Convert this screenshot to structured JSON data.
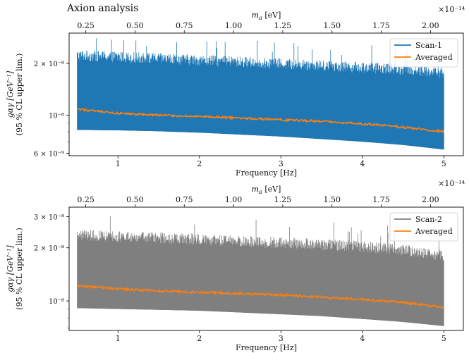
{
  "page_title": "Axion analysis",
  "chart_data": [
    {
      "type": "line",
      "name": "top-panel",
      "xlabel": "Frequency [Hz]",
      "x2label": "m_a [eV]",
      "x2label_var": "m",
      "x2label_sub": "a",
      "x2label_unit": " [eV]",
      "x2_multiplier": "×10⁻¹⁴",
      "ylabel_line1": "gαγ [GeV⁻¹]",
      "ylabel_line2": "(95 % CL upper lim.)",
      "xlim": [
        0.4,
        5.24
      ],
      "ylim_log": [
        5.8e-09,
        3e-08
      ],
      "x_ticks": [
        1,
        2,
        3,
        4,
        5
      ],
      "x_tick_labels": [
        "1",
        "2",
        "3",
        "4",
        "5"
      ],
      "x2_ticks_hz": [
        0.6045,
        1.209,
        1.8135,
        2.418,
        3.0225,
        3.627,
        4.2315,
        4.836
      ],
      "x2_tick_labels": [
        "0.25",
        "0.50",
        "0.75",
        "1.00",
        "1.25",
        "1.50",
        "1.75",
        "2.00"
      ],
      "y_ticks": [
        6e-09,
        1e-08,
        2e-08
      ],
      "y_tick_labels": [
        "6 × 10⁻⁹",
        "10⁻⁸",
        "2 × 10⁻⁸"
      ],
      "legend_position": "top-right",
      "series": [
        {
          "name": "Scan-1",
          "color": "#1f77b4",
          "kind": "band",
          "x": [
            0.5,
            1.0,
            1.5,
            2.0,
            2.5,
            3.0,
            3.5,
            4.0,
            4.5,
            5.0
          ],
          "lower": [
            8.2e-09,
            8.15e-09,
            8.05e-09,
            7.9e-09,
            7.7e-09,
            7.5e-09,
            7.25e-09,
            7e-09,
            6.7e-09,
            6.3e-09
          ],
          "upper_typical": [
            2.35e-08,
            2.3e-08,
            2.25e-08,
            2.2e-08,
            2.15e-08,
            2.1e-08,
            2.05e-08,
            2e-08,
            1.95e-08,
            1.85e-08
          ],
          "upper_peak": 2.8e-08
        },
        {
          "name": "Averaged",
          "color": "#ff7f0e",
          "kind": "line",
          "x": [
            0.5,
            1.0,
            1.5,
            2.0,
            2.5,
            3.0,
            3.5,
            4.0,
            4.5,
            5.0
          ],
          "y": [
            1.08e-08,
            1.02e-08,
            1e-08,
            9.8e-09,
            9.6e-09,
            9.4e-09,
            9.2e-09,
            8.9e-09,
            8.5e-09,
            8e-09
          ]
        }
      ]
    },
    {
      "type": "line",
      "name": "bottom-panel",
      "xlabel": "Frequency [Hz]",
      "x2label": "m_a [eV]",
      "x2label_var": "m",
      "x2label_sub": "a",
      "x2label_unit": " [eV]",
      "x2_multiplier": "×10⁻¹⁴",
      "ylabel_line1": "gαγ [GeV⁻¹]",
      "ylabel_line2": "(95 % CL upper lim.)",
      "xlim": [
        0.4,
        5.24
      ],
      "ylim_log": [
        6.8e-09,
        3.4e-08
      ],
      "x_ticks": [
        1,
        2,
        3,
        4,
        5
      ],
      "x_tick_labels": [
        "1",
        "2",
        "3",
        "4",
        "5"
      ],
      "x2_ticks_hz": [
        0.6045,
        1.209,
        1.8135,
        2.418,
        3.0225,
        3.627,
        4.2315,
        4.836
      ],
      "x2_tick_labels": [
        "0.25",
        "0.50",
        "0.75",
        "1.00",
        "1.25",
        "1.50",
        "1.75",
        "2.00"
      ],
      "y_ticks": [
        1e-08,
        2e-08,
        3e-08
      ],
      "y_tick_labels": [
        "10⁻⁸",
        "2 × 10⁻⁸",
        "3 × 10⁻⁸"
      ],
      "legend_position": "top-right",
      "series": [
        {
          "name": "Scan-2",
          "color": "#7f7f7f",
          "kind": "band",
          "x": [
            0.5,
            1.0,
            1.5,
            2.0,
            2.5,
            3.0,
            3.5,
            4.0,
            4.5,
            5.0
          ],
          "lower": [
            9.1e-09,
            9e-09,
            8.9e-09,
            8.8e-09,
            8.6e-09,
            8.4e-09,
            8.2e-09,
            7.9e-09,
            7.6e-09,
            7.2e-09
          ],
          "upper_typical": [
            2.5e-08,
            2.45e-08,
            2.4e-08,
            2.35e-08,
            2.3e-08,
            2.25e-08,
            2.2e-08,
            2.15e-08,
            2.05e-08,
            1.9e-08
          ],
          "upper_peak": 3.1e-08
        },
        {
          "name": "Averaged",
          "color": "#ff7f0e",
          "kind": "line",
          "x": [
            0.5,
            1.0,
            1.5,
            2.0,
            2.5,
            3.0,
            3.5,
            4.0,
            4.5,
            5.0
          ],
          "y": [
            1.22e-08,
            1.17e-08,
            1.14e-08,
            1.12e-08,
            1.1e-08,
            1.08e-08,
            1.05e-08,
            1.02e-08,
            9.8e-09,
            9.2e-09
          ]
        }
      ]
    }
  ]
}
